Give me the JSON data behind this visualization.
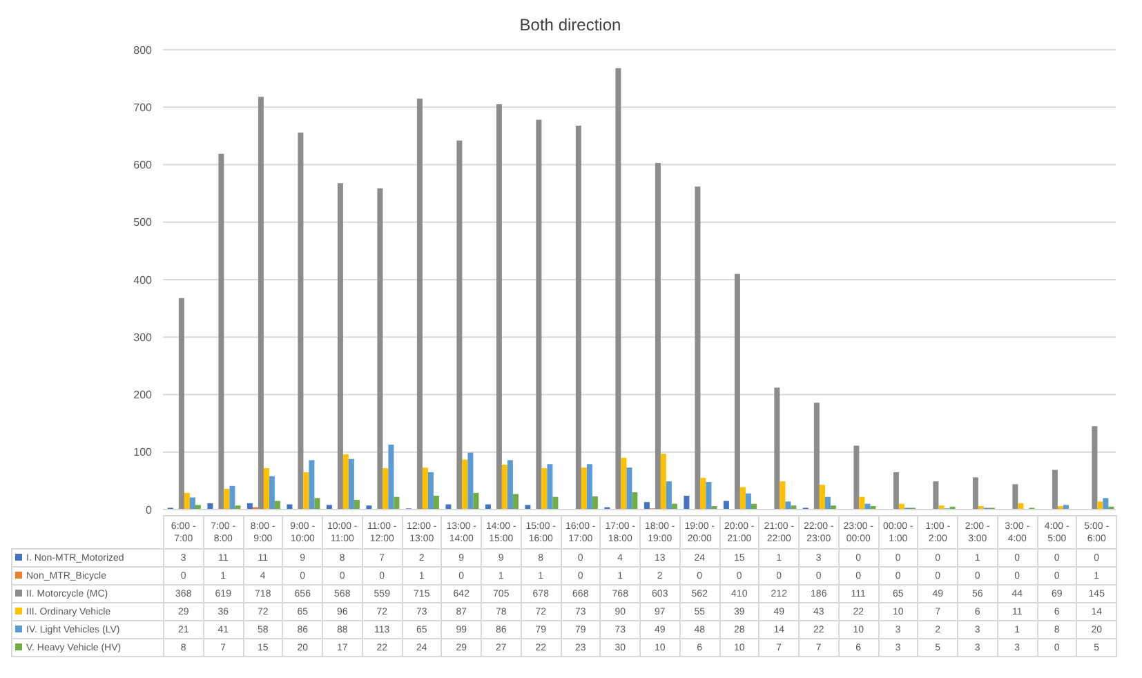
{
  "chart_data": {
    "type": "bar",
    "title": "Both direction",
    "categories": [
      "6:00 - 7:00",
      "7:00 - 8:00",
      "8:00 - 9:00",
      "9:00 - 10:00",
      "10:00 - 11:00",
      "11:00 - 12:00",
      "12:00 - 13:00",
      "13:00 - 14:00",
      "14:00 - 15:00",
      "15:00 - 16:00",
      "16:00 - 17:00",
      "17:00 - 18:00",
      "18:00 - 19:00",
      "19:00 - 20:00",
      "20:00 - 21:00",
      "21:00 - 22:00",
      "22:00 - 23:00",
      "23:00 - 00:00",
      "00:00 - 1:00",
      "1:00 - 2:00",
      "2:00 - 3:00",
      "3:00 - 4:00",
      "4:00 - 5:00",
      "5:00 - 6:00"
    ],
    "series": [
      {
        "name": "I. Non-MTR_Motorized",
        "color": "#4472c4",
        "values": [
          3,
          11,
          11,
          9,
          8,
          7,
          2,
          9,
          9,
          8,
          0,
          4,
          13,
          24,
          15,
          1,
          3,
          0,
          0,
          0,
          1,
          0,
          0,
          0
        ]
      },
      {
        "name": "Non_MTR_Bicycle",
        "color": "#ed7d31",
        "values": [
          0,
          1,
          4,
          0,
          0,
          0,
          1,
          0,
          1,
          1,
          0,
          1,
          2,
          0,
          0,
          0,
          0,
          0,
          0,
          0,
          0,
          0,
          0,
          1
        ]
      },
      {
        "name": "II. Motorcycle (MC)",
        "color": "#8c8c8c",
        "values": [
          368,
          619,
          718,
          656,
          568,
          559,
          715,
          642,
          705,
          678,
          668,
          768,
          603,
          562,
          410,
          212,
          186,
          111,
          65,
          49,
          56,
          44,
          69,
          145
        ]
      },
      {
        "name": "III. Ordinary Vehicle",
        "color": "#ffc000",
        "values": [
          29,
          36,
          72,
          65,
          96,
          72,
          73,
          87,
          78,
          72,
          73,
          90,
          97,
          55,
          39,
          49,
          43,
          22,
          10,
          7,
          6,
          11,
          6,
          14
        ]
      },
      {
        "name": "IV. Light Vehicles (LV)",
        "color": "#5b9bd5",
        "values": [
          21,
          41,
          58,
          86,
          88,
          113,
          65,
          99,
          86,
          79,
          79,
          73,
          49,
          48,
          28,
          14,
          22,
          10,
          3,
          2,
          3,
          1,
          8,
          20
        ]
      },
      {
        "name": "V. Heavy Vehicle (HV)",
        "color": "#70ad47",
        "values": [
          8,
          7,
          15,
          20,
          17,
          22,
          24,
          29,
          27,
          22,
          23,
          30,
          10,
          6,
          10,
          7,
          7,
          6,
          3,
          5,
          3,
          3,
          0,
          5
        ]
      }
    ],
    "ylim": [
      0,
      800
    ],
    "yticks": [
      0,
      100,
      200,
      300,
      400,
      500,
      600,
      700,
      800
    ],
    "grid": "y",
    "legend": "bottom",
    "data_labels": true
  }
}
